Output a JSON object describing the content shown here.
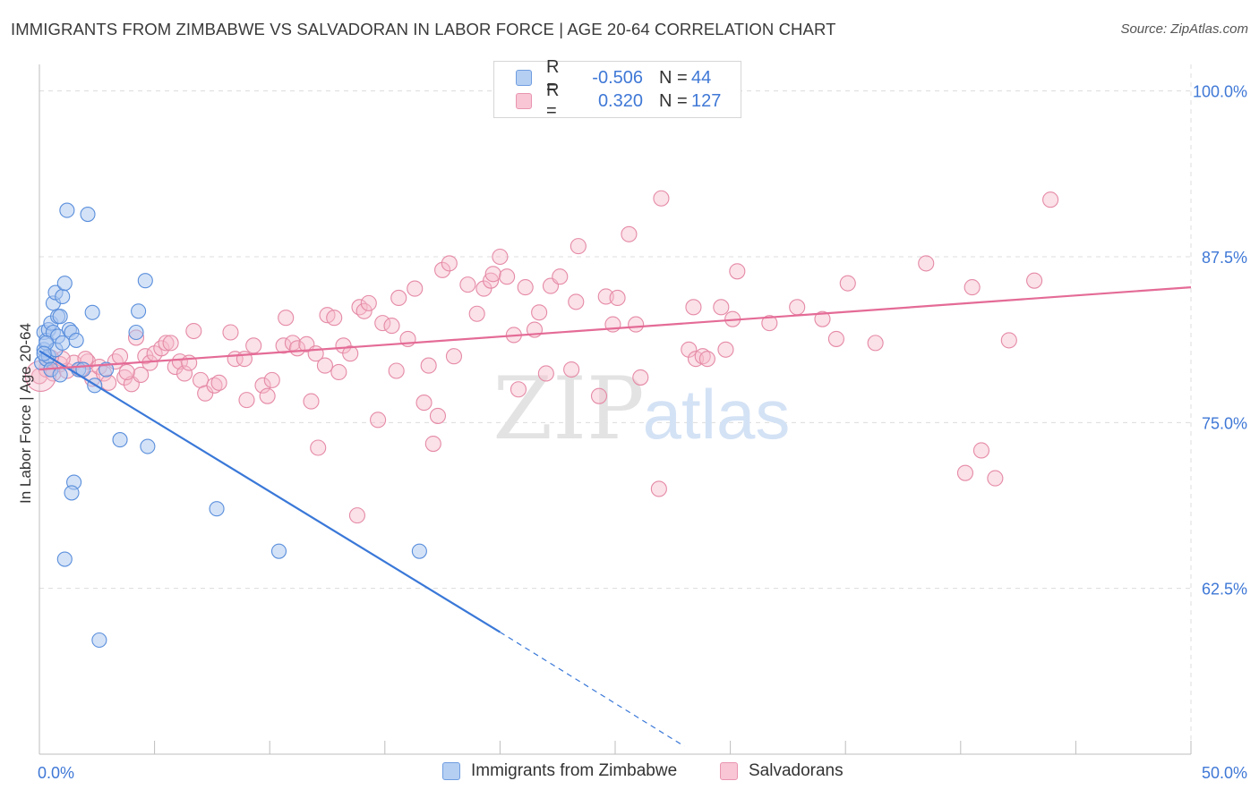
{
  "title": "IMMIGRANTS FROM ZIMBABWE VS SALVADORAN IN LABOR FORCE | AGE 20-64 CORRELATION CHART",
  "source": "Source: ZipAtlas.com",
  "watermark": {
    "zip": "ZIP",
    "atlas": "atlas"
  },
  "legend": {
    "rows": [
      {
        "r_label": "R =",
        "r_value": "-0.506",
        "n_label": "N =",
        "n_value": "44"
      },
      {
        "r_label": "R =",
        "r_value": "0.320",
        "n_label": "N =",
        "n_value": "127"
      }
    ]
  },
  "colors": {
    "blue_fill": "#a9c6f0",
    "blue_stroke": "#5a8fdc",
    "blue_line": "#3a78d8",
    "pink_fill": "#f6bccd",
    "pink_stroke": "#e58aa6",
    "pink_line": "#e46b96",
    "tick_text": "#3f78d6",
    "grid": "#dcdcdc"
  },
  "chart_data": {
    "type": "scatter",
    "title": "IMMIGRANTS FROM ZIMBABWE VS SALVADORAN IN LABOR FORCE | AGE 20-64 CORRELATION CHART",
    "xlabel": "",
    "ylabel": "In Labor Force | Age 20-64",
    "xlim": [
      0,
      50
    ],
    "ylim": [
      50,
      102
    ],
    "x_tick_labels": [
      "0.0%",
      "50.0%"
    ],
    "y_ticks": [
      62.5,
      75.0,
      87.5,
      100.0
    ],
    "y_tick_labels": [
      "62.5%",
      "75.0%",
      "87.5%",
      "100.0%"
    ],
    "grid": true,
    "legend_position": "top-center",
    "series": [
      {
        "name": "Immigrants from Zimbabwe",
        "color": "#5a8fdc",
        "points": [
          [
            0.1,
            79.5
          ],
          [
            0.2,
            80.5
          ],
          [
            0.2,
            81.8
          ],
          [
            0.3,
            81.2
          ],
          [
            0.3,
            79.8
          ],
          [
            0.4,
            82.0
          ],
          [
            0.4,
            80.0
          ],
          [
            0.5,
            82.5
          ],
          [
            0.5,
            79.0
          ],
          [
            0.6,
            81.8
          ],
          [
            0.6,
            84.0
          ],
          [
            0.7,
            84.8
          ],
          [
            0.7,
            80.5
          ],
          [
            0.8,
            83.0
          ],
          [
            0.8,
            81.5
          ],
          [
            0.9,
            78.6
          ],
          [
            0.9,
            83.0
          ],
          [
            1.0,
            81.0
          ],
          [
            1.0,
            84.5
          ],
          [
            1.1,
            85.5
          ],
          [
            1.2,
            91.0
          ],
          [
            1.3,
            82.0
          ],
          [
            1.4,
            81.8
          ],
          [
            1.5,
            70.5
          ],
          [
            1.4,
            69.7
          ],
          [
            1.6,
            81.2
          ],
          [
            1.7,
            79.0
          ],
          [
            1.9,
            79.0
          ],
          [
            2.1,
            90.7
          ],
          [
            2.3,
            83.3
          ],
          [
            2.4,
            77.8
          ],
          [
            2.6,
            58.6
          ],
          [
            2.9,
            79.0
          ],
          [
            3.5,
            73.7
          ],
          [
            4.2,
            81.8
          ],
          [
            4.3,
            83.4
          ],
          [
            4.6,
            85.7
          ],
          [
            4.7,
            73.2
          ],
          [
            7.7,
            68.5
          ],
          [
            10.4,
            65.3
          ],
          [
            16.5,
            65.3
          ],
          [
            1.1,
            64.7
          ],
          [
            0.3,
            81.0
          ],
          [
            0.2,
            80.2
          ]
        ],
        "trend": {
          "x0": 0,
          "y0": 80.4,
          "x1": 20,
          "y1": 59.2,
          "dashed_to_x": 28,
          "dashed_to_y": 50.6
        }
      },
      {
        "name": "Salvadorans",
        "color": "#e58aa6",
        "points": [
          [
            0.0,
            78.5
          ],
          [
            0.3,
            79.0
          ],
          [
            0.6,
            78.7
          ],
          [
            0.9,
            79.4
          ],
          [
            1.2,
            78.9
          ],
          [
            1.5,
            79.5
          ],
          [
            1.8,
            79.0
          ],
          [
            2.1,
            79.6
          ],
          [
            2.3,
            78.3
          ],
          [
            2.6,
            79.2
          ],
          [
            2.8,
            78.7
          ],
          [
            3.0,
            78.0
          ],
          [
            3.3,
            79.6
          ],
          [
            3.5,
            80.0
          ],
          [
            3.7,
            78.4
          ],
          [
            4.0,
            77.9
          ],
          [
            4.2,
            81.4
          ],
          [
            4.4,
            78.6
          ],
          [
            4.6,
            80.0
          ],
          [
            4.8,
            79.5
          ],
          [
            5.0,
            80.2
          ],
          [
            5.3,
            80.6
          ],
          [
            5.5,
            81.0
          ],
          [
            5.9,
            79.2
          ],
          [
            6.1,
            79.6
          ],
          [
            6.3,
            78.7
          ],
          [
            6.7,
            81.9
          ],
          [
            7.0,
            78.2
          ],
          [
            7.2,
            77.2
          ],
          [
            7.6,
            77.8
          ],
          [
            7.8,
            78.0
          ],
          [
            8.3,
            81.8
          ],
          [
            8.5,
            79.8
          ],
          [
            8.9,
            79.8
          ],
          [
            9.0,
            76.7
          ],
          [
            9.3,
            80.8
          ],
          [
            9.7,
            77.8
          ],
          [
            9.9,
            77.0
          ],
          [
            10.1,
            78.2
          ],
          [
            10.6,
            80.8
          ],
          [
            10.7,
            82.9
          ],
          [
            11.0,
            81.0
          ],
          [
            11.2,
            80.6
          ],
          [
            11.6,
            80.9
          ],
          [
            11.8,
            76.6
          ],
          [
            12.0,
            80.2
          ],
          [
            12.1,
            73.1
          ],
          [
            12.4,
            79.3
          ],
          [
            12.5,
            83.1
          ],
          [
            12.8,
            82.9
          ],
          [
            13.0,
            78.8
          ],
          [
            13.2,
            80.8
          ],
          [
            13.5,
            80.2
          ],
          [
            13.8,
            68.0
          ],
          [
            13.9,
            83.7
          ],
          [
            14.1,
            83.4
          ],
          [
            14.3,
            84.0
          ],
          [
            14.7,
            75.2
          ],
          [
            14.9,
            82.5
          ],
          [
            15.3,
            82.3
          ],
          [
            15.5,
            78.9
          ],
          [
            15.6,
            84.4
          ],
          [
            16.0,
            81.3
          ],
          [
            16.3,
            85.1
          ],
          [
            16.7,
            76.5
          ],
          [
            16.9,
            79.3
          ],
          [
            17.1,
            73.4
          ],
          [
            17.3,
            75.5
          ],
          [
            17.5,
            86.5
          ],
          [
            17.8,
            87.0
          ],
          [
            18.0,
            80.0
          ],
          [
            18.6,
            85.4
          ],
          [
            19.0,
            83.2
          ],
          [
            19.3,
            85.1
          ],
          [
            19.6,
            85.7
          ],
          [
            19.7,
            86.2
          ],
          [
            20.0,
            87.5
          ],
          [
            20.3,
            86.0
          ],
          [
            20.6,
            81.6
          ],
          [
            20.8,
            77.5
          ],
          [
            21.1,
            85.2
          ],
          [
            21.5,
            82.0
          ],
          [
            21.7,
            83.3
          ],
          [
            22.0,
            78.7
          ],
          [
            22.2,
            85.3
          ],
          [
            22.6,
            86.0
          ],
          [
            23.1,
            79.0
          ],
          [
            23.3,
            84.1
          ],
          [
            23.4,
            88.3
          ],
          [
            24.3,
            77.0
          ],
          [
            24.6,
            84.5
          ],
          [
            24.9,
            82.4
          ],
          [
            25.1,
            84.4
          ],
          [
            25.6,
            89.2
          ],
          [
            25.9,
            82.4
          ],
          [
            26.1,
            78.4
          ],
          [
            27.0,
            91.9
          ],
          [
            26.9,
            70.0
          ],
          [
            28.2,
            80.5
          ],
          [
            28.4,
            83.7
          ],
          [
            28.5,
            79.8
          ],
          [
            28.8,
            80.0
          ],
          [
            29.0,
            79.8
          ],
          [
            29.6,
            83.7
          ],
          [
            29.8,
            80.5
          ],
          [
            30.1,
            82.8
          ],
          [
            30.3,
            86.4
          ],
          [
            31.7,
            82.5
          ],
          [
            32.9,
            83.7
          ],
          [
            34.0,
            82.8
          ],
          [
            34.6,
            81.3
          ],
          [
            35.1,
            85.5
          ],
          [
            36.3,
            81.0
          ],
          [
            38.5,
            87.0
          ],
          [
            40.2,
            71.2
          ],
          [
            40.5,
            85.2
          ],
          [
            40.9,
            72.9
          ],
          [
            41.5,
            70.8
          ],
          [
            42.1,
            81.2
          ],
          [
            43.2,
            85.7
          ],
          [
            43.9,
            91.8
          ],
          [
            1.0,
            79.8
          ],
          [
            2.0,
            79.8
          ],
          [
            3.8,
            78.8
          ],
          [
            5.7,
            81.0
          ],
          [
            0.5,
            79.9
          ],
          [
            6.5,
            79.5
          ]
        ],
        "trend": {
          "x0": 0,
          "y0": 79.0,
          "x1": 50,
          "y1": 85.2
        }
      }
    ]
  },
  "bottom_legend": {
    "series1": "Immigrants from Zimbabwe",
    "series2": "Salvadorans"
  }
}
